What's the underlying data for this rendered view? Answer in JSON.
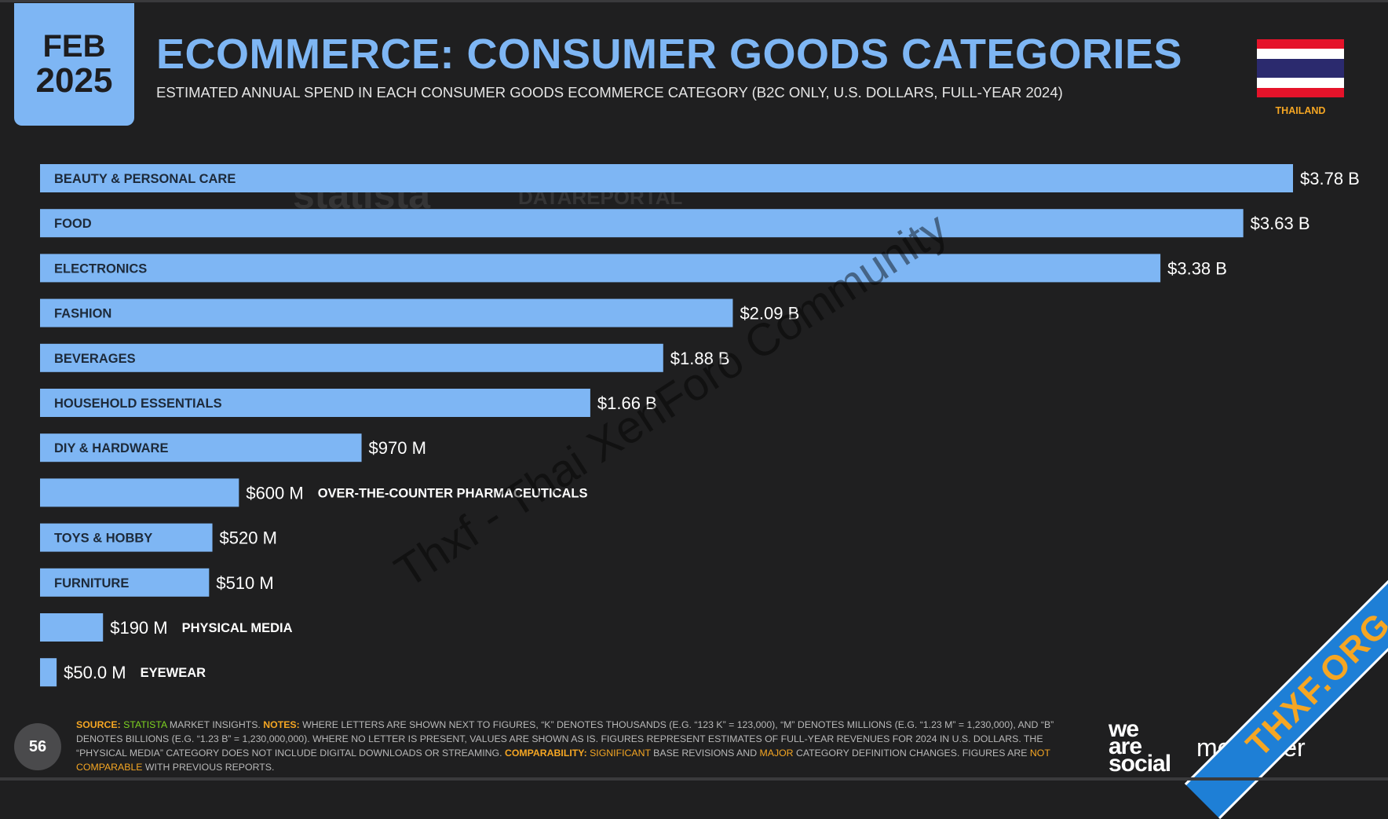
{
  "badge": {
    "month": "FEB",
    "year": "2025"
  },
  "header": {
    "title": "ECOMMERCE: CONSUMER GOODS CATEGORIES",
    "subtitle": "ESTIMATED ANNUAL SPEND IN EACH CONSUMER GOODS ECOMMERCE CATEGORY (B2C ONLY, U.S. DOLLARS, FULL-YEAR 2024)"
  },
  "country": {
    "name": "THAILAND",
    "flag_colors": [
      "#e5132a",
      "#ffffff",
      "#2b2a6e",
      "#ffffff",
      "#e5132a"
    ]
  },
  "colors": {
    "bar": "#7eb6f4",
    "accent": "#f5a623",
    "background": "#1f1f20"
  },
  "chart_data": {
    "type": "bar",
    "orientation": "horizontal",
    "categories": [
      "BEAUTY & PERSONAL CARE",
      "FOOD",
      "ELECTRONICS",
      "FASHION",
      "BEVERAGES",
      "HOUSEHOLD ESSENTIALS",
      "DIY & HARDWARE",
      "OVER-THE-COUNTER PHARMACEUTICALS",
      "TOYS & HOBBY",
      "FURNITURE",
      "PHYSICAL MEDIA",
      "EYEWEAR"
    ],
    "values": [
      3.78,
      3.63,
      3.38,
      2.09,
      1.88,
      1.66,
      0.97,
      0.6,
      0.52,
      0.51,
      0.19,
      0.05
    ],
    "value_labels": [
      "$3.78 B",
      "$3.63 B",
      "$3.38 B",
      "$2.09 B",
      "$1.88 B",
      "$1.66 B",
      "$970 M",
      "$600 M",
      "$520 M",
      "$510 M",
      "$190 M",
      "$50.0 M"
    ],
    "unit": "billions of U.S. dollars",
    "xlim": [
      0,
      3.78
    ],
    "grid": false,
    "legend": "none"
  },
  "watermarks": {
    "statista": "statista",
    "datareportal": "DATAREPORTAL",
    "diagonal": "Thxf - Thai XenForo Community",
    "ribbon": "THXF.ORG"
  },
  "footer": {
    "source_label": "SOURCE:",
    "source_name": "STATISTA",
    "source_rest": " MARKET INSIGHTS. ",
    "notes_label": "NOTES:",
    "notes_text": " WHERE LETTERS ARE SHOWN NEXT TO FIGURES, “K” DENOTES THOUSANDS (E.G. “123 K” = 123,000), “M” DENOTES MILLIONS (E.G. “1.23 M” = 1,230,000), AND “B” DENOTES BILLIONS (E.G. “1.23 B” = 1,230,000,000). WHERE NO LETTER IS PRESENT, VALUES ARE SHOWN AS IS. FIGURES REPRESENT ESTIMATES OF FULL-YEAR REVENUES FOR 2024 IN U.S. DOLLARS. THE “PHYSICAL MEDIA” CATEGORY DOES NOT INCLUDE DIGITAL DOWNLOADS OR STREAMING. ",
    "comparability_label": "COMPARABILITY:",
    "comp_significant": " SIGNIFICANT",
    "comp_text1": " BASE REVISIONS AND ",
    "comp_major": "MAJOR",
    "comp_text2": " CATEGORY DEFINITION CHANGES. FIGURES ARE ",
    "comp_not": "NOT COMPARABLE",
    "comp_text3": " WITH PREVIOUS REPORTS."
  },
  "page_number": "56",
  "brands": {
    "was": [
      "we",
      "are",
      "social"
    ],
    "meltwater": "meltwater"
  }
}
